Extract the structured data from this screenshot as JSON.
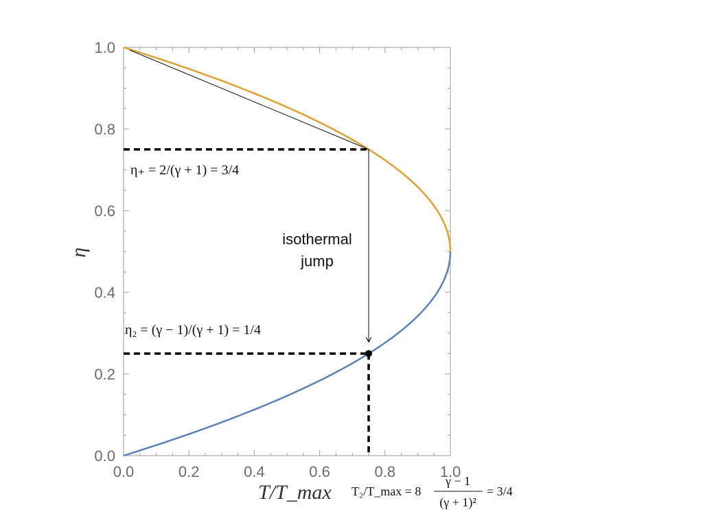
{
  "chart_data": {
    "type": "line",
    "xlabel": "T/T_max",
    "ylabel": "η",
    "xlim": [
      0.0,
      1.0
    ],
    "ylim": [
      0.0,
      1.0
    ],
    "x_ticks": [
      "0.0",
      "0.2",
      "0.4",
      "0.6",
      "0.8",
      "1.0"
    ],
    "y_ticks": [
      "0.0",
      "0.2",
      "0.4",
      "0.6",
      "0.8",
      "1.0"
    ],
    "relation": "T/T_max = 4·η·(1−η)",
    "series": [
      {
        "color": "#e0a030",
        "branch": "upper",
        "eta_range": [
          0.5,
          1.0
        ]
      },
      {
        "color": "#5b7fb8",
        "branch": "lower",
        "eta_range": [
          0.0,
          0.5
        ]
      }
    ],
    "tangent_line": {
      "from": [
        0.0,
        1.0
      ],
      "to": [
        0.75,
        0.75
      ],
      "color": "#111111"
    },
    "jump_arrow": {
      "from": [
        0.75,
        0.75
      ],
      "to": [
        0.75,
        0.25
      ]
    },
    "end_point": [
      0.75,
      0.25
    ],
    "annotations": {
      "eta_plus": "η₊ = 2/(γ + 1) = 3/4",
      "eta_2": "η₂ = (γ − 1)/(γ + 1) = 1/4",
      "jump_line1": "isothermal",
      "jump_line2": "jump",
      "t2_lhs": "T₂/T_max = 8",
      "t2_num": "γ − 1",
      "t2_den": "(γ + 1)²",
      "t2_rhs": "= 3/4"
    }
  }
}
